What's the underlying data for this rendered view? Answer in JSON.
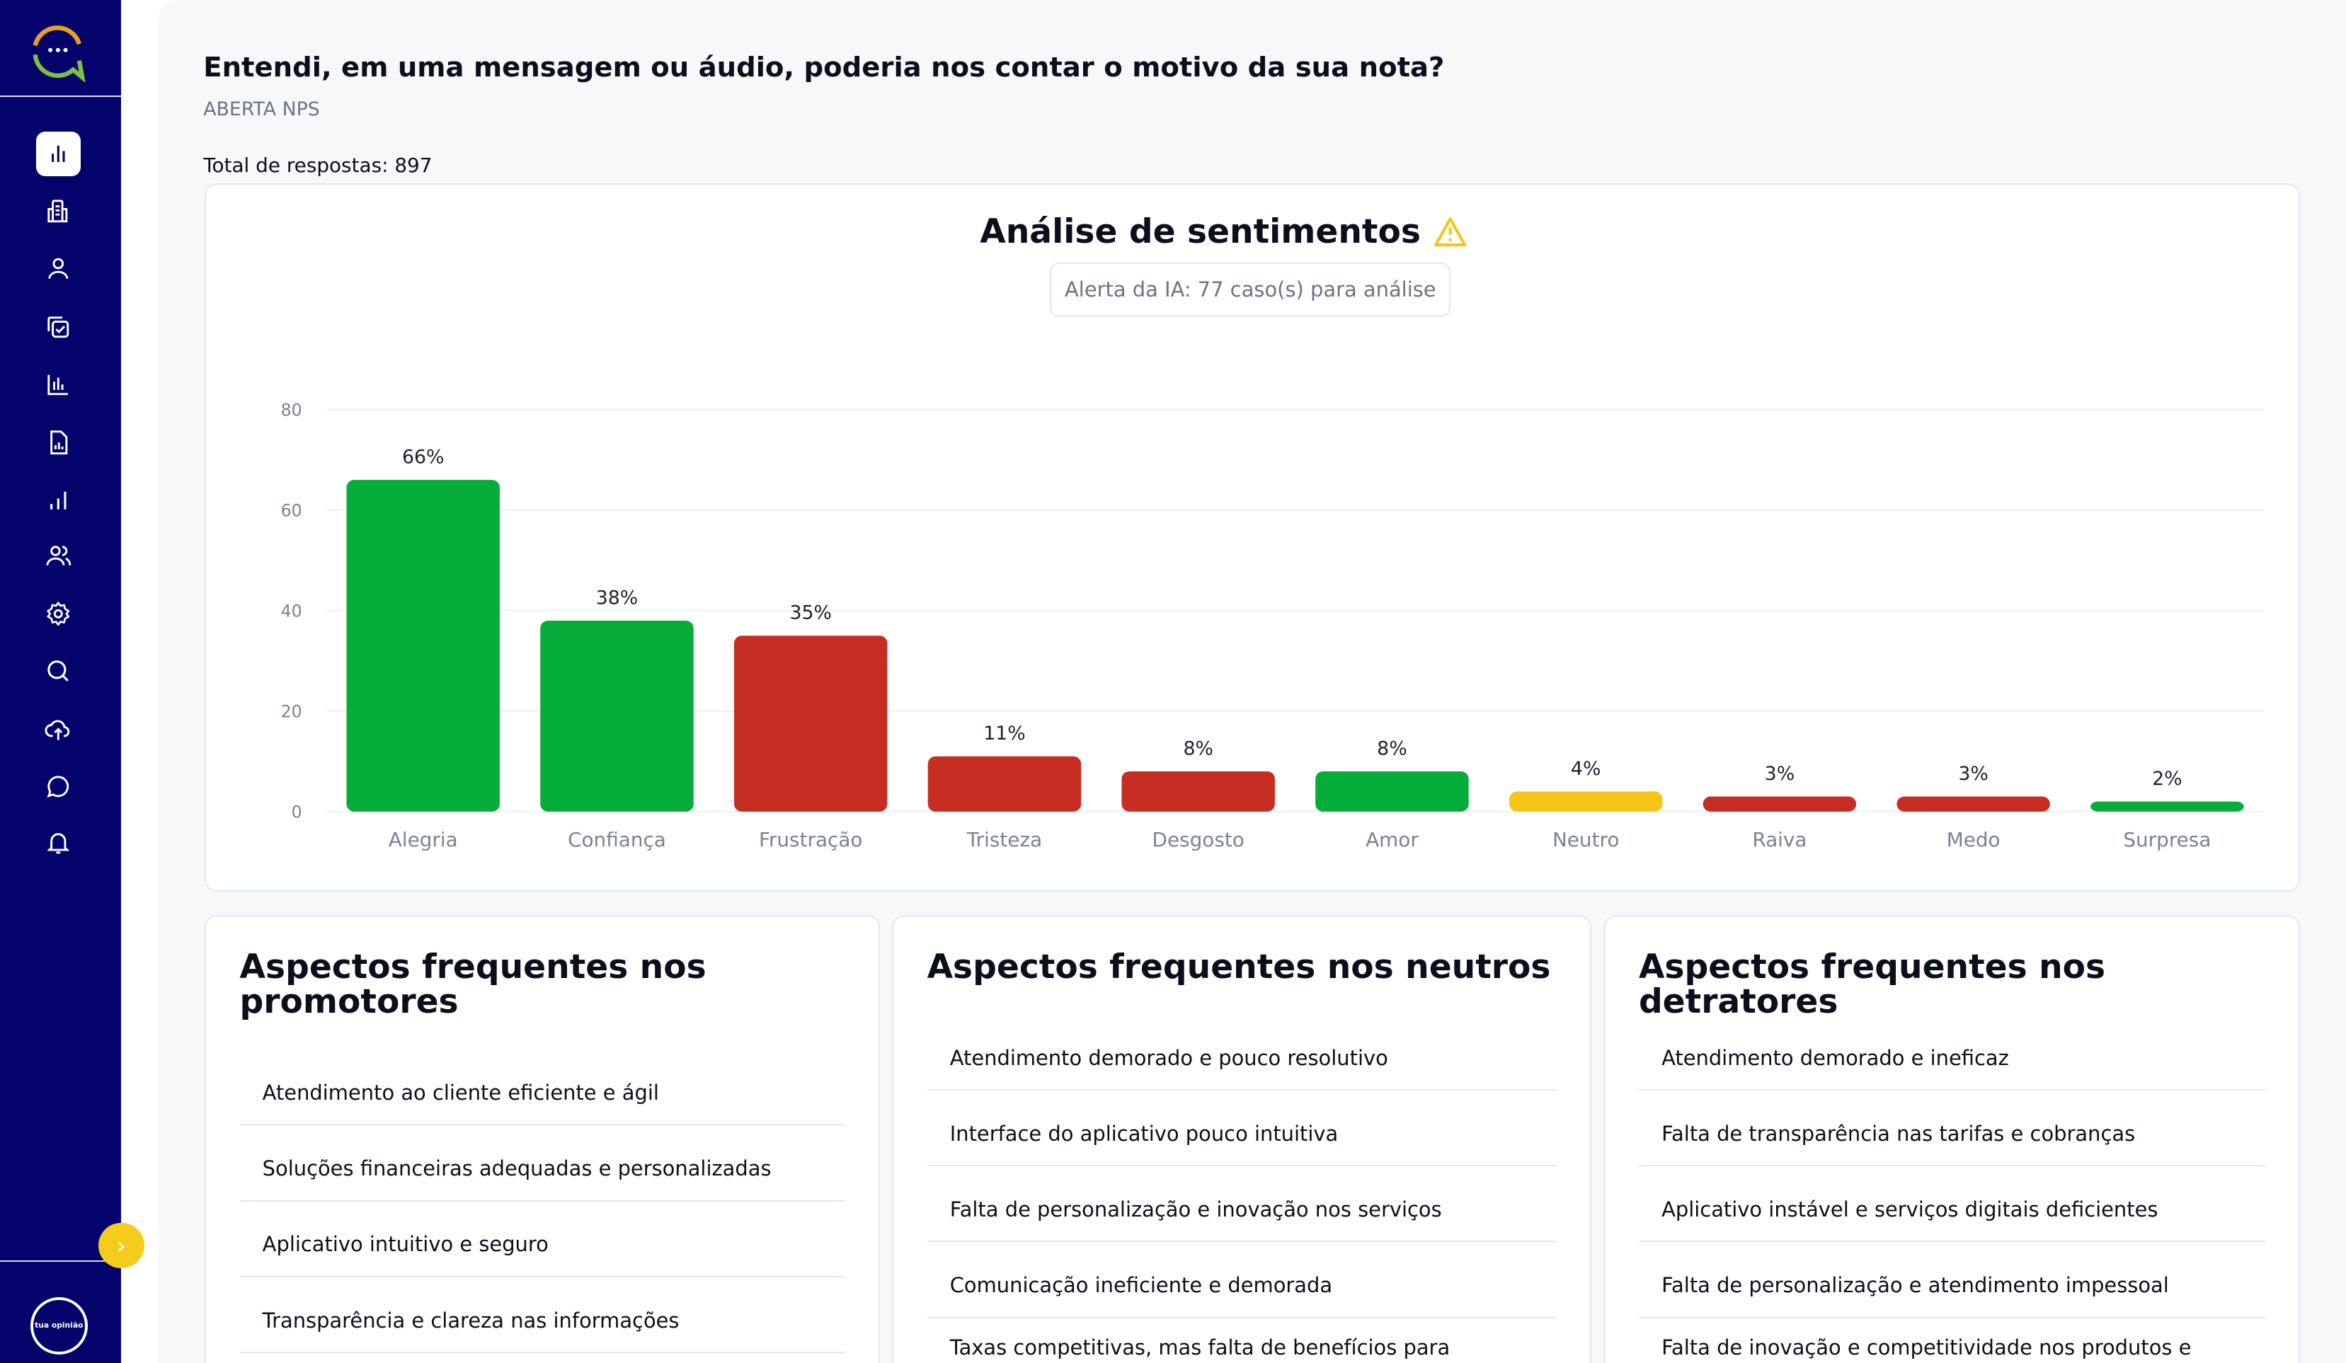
{
  "sidebar": {
    "items": [
      {
        "icon": "bar-chart-icon",
        "active": true
      },
      {
        "icon": "building-icon"
      },
      {
        "icon": "user-icon"
      },
      {
        "icon": "copy-check-icon"
      },
      {
        "icon": "column-chart-icon"
      },
      {
        "icon": "file-chart-icon"
      },
      {
        "icon": "signal-bars-icon"
      },
      {
        "icon": "users-icon"
      },
      {
        "icon": "gear-icon"
      },
      {
        "icon": "search-icon"
      },
      {
        "icon": "cloud-upload-icon"
      },
      {
        "icon": "chat-bubble-icon"
      },
      {
        "icon": "bell-icon"
      }
    ],
    "brand_logo_text": "tua opinião"
  },
  "question": {
    "title": "Entendi, em uma mensagem ou áudio, poderia nos contar o motivo da sua nota?",
    "type": "ABERTA NPS",
    "total": "Total de respostas: 897"
  },
  "sentiment": {
    "title": "Análise de sentimentos",
    "alert": "Alerta da IA: 77 caso(s) para análise"
  },
  "colors": {
    "sidebar": "#03036b",
    "positive": "#06ad3a",
    "negative": "#c62e24",
    "neutral": "#f5c518",
    "accent": "#f4cd1c"
  },
  "chart_data": {
    "type": "bar",
    "categories": [
      "Alegria",
      "Confiança",
      "Frustração",
      "Tristeza",
      "Desgosto",
      "Amor",
      "Neutro",
      "Raiva",
      "Medo",
      "Surpresa"
    ],
    "values": [
      66,
      38,
      35,
      11,
      8,
      8,
      4,
      3,
      3,
      2
    ],
    "labels": [
      "66%",
      "38%",
      "35%",
      "11%",
      "8%",
      "8%",
      "4%",
      "3%",
      "3%",
      "2%"
    ],
    "bar_colors": [
      "#06ad3a",
      "#06ad3a",
      "#c62e24",
      "#c62e24",
      "#c62e24",
      "#06ad3a",
      "#f5c518",
      "#c62e24",
      "#c62e24",
      "#06ad3a"
    ],
    "ylim": [
      0,
      80
    ],
    "yticks": [
      0,
      20,
      40,
      60,
      80
    ],
    "grid": true,
    "xlabel": "",
    "ylabel": ""
  },
  "aspects": [
    {
      "title": "Aspectos frequentes nos promotores",
      "items": [
        "Atendimento ao cliente eficiente e ágil",
        "Soluções financeiras adequadas e personalizadas",
        "Aplicativo intuitivo e seguro",
        "Transparência e clareza nas informações"
      ]
    },
    {
      "title": "Aspectos frequentes nos neutros",
      "items": [
        "Atendimento demorado e pouco resolutivo",
        "Interface do aplicativo pouco intuitiva",
        "Falta de personalização e inovação nos serviços",
        "Comunicação ineficiente e demorada",
        "Taxas competitivas, mas falta de benefícios para clientes fiéis"
      ]
    },
    {
      "title": "Aspectos frequentes nos detratores",
      "items": [
        "Atendimento demorado e ineficaz",
        "Falta de transparência nas tarifas e cobranças",
        "Aplicativo instável e serviços digitais deficientes",
        "Falta de personalização e atendimento impessoal",
        "Falta de inovação e competitividade nos produtos e serviços"
      ]
    }
  ]
}
